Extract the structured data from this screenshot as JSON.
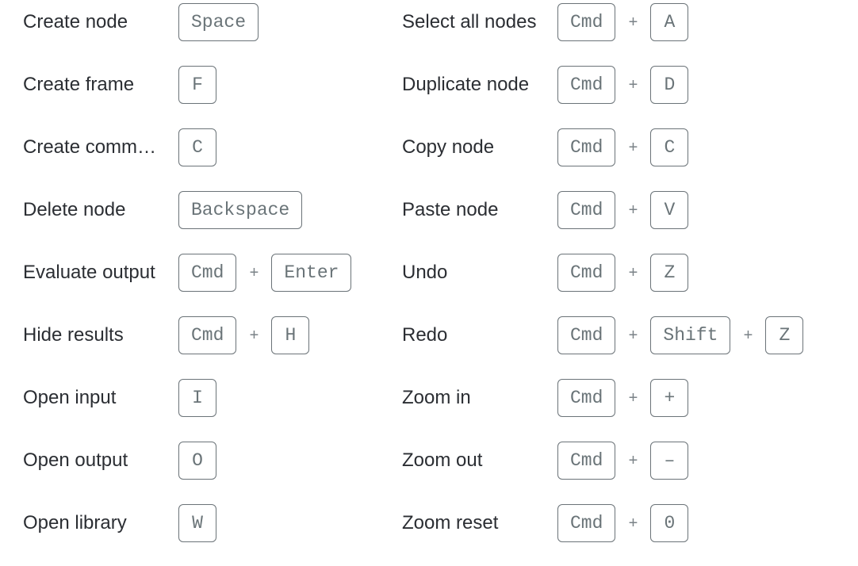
{
  "shortcuts_left": [
    {
      "label": "Create node",
      "keys": [
        "Space"
      ]
    },
    {
      "label": "Create frame",
      "keys": [
        "F"
      ]
    },
    {
      "label": "Create comm…",
      "keys": [
        "C"
      ]
    },
    {
      "label": "Delete node",
      "keys": [
        "Backspace"
      ]
    },
    {
      "label": "Evaluate output",
      "keys": [
        "Cmd",
        "Enter"
      ]
    },
    {
      "label": "Hide results",
      "keys": [
        "Cmd",
        "H"
      ]
    },
    {
      "label": "Open input",
      "keys": [
        "I"
      ]
    },
    {
      "label": "Open output",
      "keys": [
        "O"
      ]
    },
    {
      "label": "Open library",
      "keys": [
        "W"
      ]
    }
  ],
  "shortcuts_right": [
    {
      "label": "Select all nodes",
      "keys": [
        "Cmd",
        "A"
      ]
    },
    {
      "label": "Duplicate node",
      "keys": [
        "Cmd",
        "D"
      ]
    },
    {
      "label": "Copy node",
      "keys": [
        "Cmd",
        "C"
      ]
    },
    {
      "label": "Paste node",
      "keys": [
        "Cmd",
        "V"
      ]
    },
    {
      "label": "Undo",
      "keys": [
        "Cmd",
        "Z"
      ]
    },
    {
      "label": "Redo",
      "keys": [
        "Cmd",
        "Shift",
        "Z"
      ]
    },
    {
      "label": "Zoom in",
      "keys": [
        "Cmd",
        "+"
      ]
    },
    {
      "label": "Zoom out",
      "keys": [
        "Cmd",
        "–"
      ]
    },
    {
      "label": "Zoom reset",
      "keys": [
        "Cmd",
        "0"
      ]
    }
  ],
  "separator": "+"
}
